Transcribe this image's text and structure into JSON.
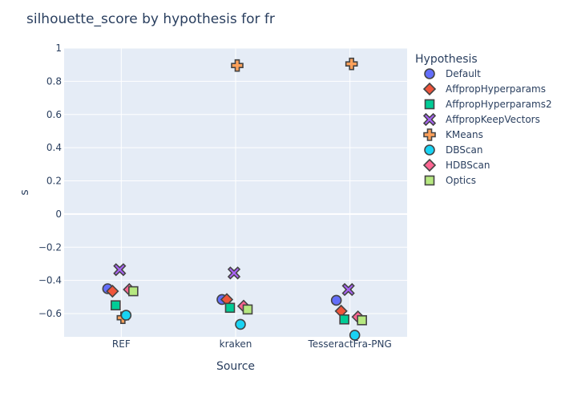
{
  "chart_data": {
    "type": "scatter",
    "title": "silhouette_score by hypothesis for fr",
    "xlabel": "Source",
    "ylabel": "s",
    "categories": [
      "REF",
      "kraken",
      "TesseractFra-PNG"
    ],
    "ylim": [
      -0.74,
      1.0
    ],
    "yticks": [
      1,
      0.8,
      0.6,
      0.4,
      0.2,
      0,
      -0.2,
      -0.4,
      -0.6
    ],
    "ytick_labels": [
      "1",
      "0.8",
      "0.6",
      "0.4",
      "0.2",
      "0",
      "−0.2",
      "−0.4",
      "−0.6"
    ],
    "grid": true,
    "legend_title": "Hypothesis",
    "legend_position": "right",
    "series": [
      {
        "name": "Default",
        "symbol": "circle",
        "color": "#636efa",
        "values": [
          -0.45,
          -0.515,
          -0.52
        ]
      },
      {
        "name": "AffpropHyperparams",
        "symbol": "diamond",
        "color": "#EF553B",
        "values": [
          -0.465,
          -0.515,
          -0.585
        ]
      },
      {
        "name": "AffpropHyperparams2",
        "symbol": "square",
        "color": "#00cc96",
        "values": [
          -0.55,
          -0.565,
          -0.635
        ]
      },
      {
        "name": "AffpropKeepVectors",
        "symbol": "x",
        "color": "#ab63fa",
        "values": [
          -0.335,
          -0.355,
          -0.455
        ]
      },
      {
        "name": "KMeans",
        "symbol": "cross",
        "color": "#FFA15A",
        "values": [
          -0.625,
          0.895,
          0.905
        ]
      },
      {
        "name": "DBScan",
        "symbol": "circle",
        "color": "#19d3f3",
        "values": [
          -0.61,
          -0.665,
          -0.73
        ]
      },
      {
        "name": "HDBScan",
        "symbol": "diamond",
        "color": "#FF6692",
        "values": [
          -0.455,
          -0.555,
          -0.62
        ]
      },
      {
        "name": "Optics",
        "symbol": "square",
        "color": "#B6E880",
        "values": [
          -0.465,
          -0.575,
          -0.64
        ]
      }
    ]
  }
}
